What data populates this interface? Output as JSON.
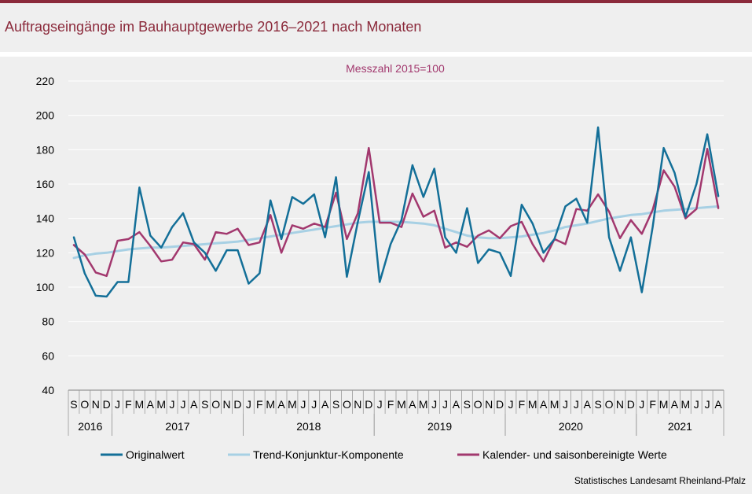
{
  "title": "Auftragseingänge im Bauhauptgewerbe 2016–2021 nach Monaten",
  "source": "Statistisches Landesamt Rheinland-Pfalz",
  "colors": {
    "accent": "#8b2a3b",
    "original": "#136f98",
    "trend": "#a7d0e4",
    "adjusted": "#a2386e"
  },
  "chart_data": {
    "type": "line",
    "subtitle": "Messzahl 2015=100",
    "ylim": [
      40,
      220
    ],
    "yticks": [
      40,
      60,
      80,
      100,
      120,
      140,
      160,
      180,
      200,
      220
    ],
    "grid": true,
    "months": [
      "S",
      "O",
      "N",
      "D",
      "J",
      "F",
      "M",
      "A",
      "M",
      "J",
      "J",
      "A",
      "S",
      "O",
      "N",
      "D",
      "J",
      "F",
      "M",
      "A",
      "M",
      "J",
      "J",
      "A",
      "S",
      "O",
      "N",
      "D",
      "J",
      "F",
      "M",
      "A",
      "M",
      "J",
      "J",
      "A",
      "S",
      "O",
      "N",
      "D",
      "J",
      "F",
      "M",
      "A",
      "M",
      "J",
      "J",
      "A",
      "S",
      "O",
      "N",
      "D",
      "J",
      "F",
      "M",
      "A",
      "M",
      "J",
      "J",
      "A"
    ],
    "years": [
      {
        "label": "2016",
        "start": 0,
        "count": 4
      },
      {
        "label": "2017",
        "start": 4,
        "count": 12
      },
      {
        "label": "2018",
        "start": 16,
        "count": 12
      },
      {
        "label": "2019",
        "start": 28,
        "count": 12
      },
      {
        "label": "2020",
        "start": 40,
        "count": 12
      },
      {
        "label": "2021",
        "start": 52,
        "count": 8
      }
    ],
    "series": [
      {
        "name": "Originalwert",
        "key": "original",
        "values": [
          129,
          108,
          95,
          94.5,
          103,
          103,
          158,
          130,
          123,
          135,
          143,
          126,
          120,
          109.5,
          121.5,
          121.5,
          102,
          108,
          150.5,
          128,
          152.5,
          148.5,
          154,
          129,
          164,
          106,
          138,
          167,
          103,
          125,
          139,
          171,
          152.5,
          169,
          129,
          120,
          146,
          114,
          122,
          120,
          106.5,
          148,
          137,
          120,
          128,
          147,
          151.5,
          137.5,
          193,
          129,
          109.5,
          129,
          97,
          135,
          181,
          166.5,
          141,
          160,
          189,
          153
        ]
      },
      {
        "name": "Trend-Konjunktur-Komponente",
        "key": "trend",
        "values": [
          117,
          118.5,
          119.5,
          120,
          121,
          122,
          122.5,
          123,
          123,
          123.5,
          124,
          124.5,
          125,
          125.5,
          126,
          126.5,
          127.5,
          128.5,
          129.5,
          130.5,
          131.5,
          132.5,
          133.5,
          134.5,
          135.5,
          136.5,
          137.5,
          138,
          138,
          138,
          138,
          137.5,
          137,
          136,
          134,
          132,
          130,
          129,
          128.5,
          128.5,
          129,
          129.5,
          130.5,
          131.5,
          133,
          135,
          136,
          137,
          138.5,
          140,
          141,
          142,
          142.5,
          143.5,
          144.5,
          145,
          145.5,
          146,
          146.5,
          147
        ]
      },
      {
        "name": "Kalender- und saisonbereinigte Werte",
        "key": "adjusted",
        "values": [
          124.5,
          119,
          108.5,
          106.5,
          127,
          128,
          132,
          124,
          115,
          116,
          126,
          125,
          116,
          132,
          131,
          134,
          124.5,
          126,
          142,
          120,
          136,
          134,
          137,
          135,
          155,
          128,
          143,
          181,
          137.5,
          137.5,
          135,
          154.5,
          141,
          144.5,
          123,
          126,
          123.5,
          130,
          133,
          128.5,
          135.5,
          138,
          125,
          115,
          128,
          125,
          145.5,
          144.5,
          154,
          144,
          128.5,
          139,
          131,
          145,
          168,
          158.5,
          140,
          145.5,
          180.5,
          146
        ]
      }
    ]
  }
}
